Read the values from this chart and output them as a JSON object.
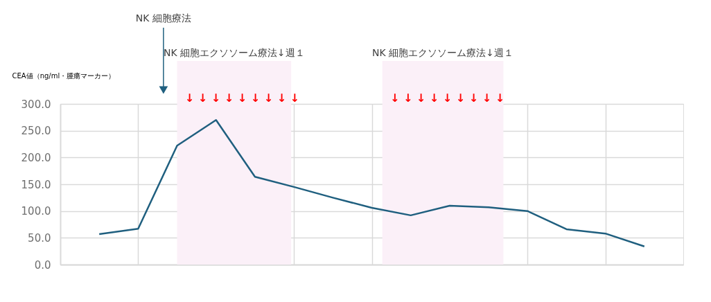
{
  "chart_data": {
    "type": "line",
    "ylabel": "CEA値（ng/ml・腫瘍マーカー）",
    "categories": [
      null,
      null,
      null,
      null,
      null,
      null,
      null,
      null,
      null,
      null,
      null,
      null,
      null,
      null,
      null
    ],
    "series": [
      {
        "color": "#1f5f7f",
        "values": [
          57,
          67,
          222,
          270,
          164,
          145,
          125,
          106,
          92,
          110,
          107,
          100,
          66,
          58,
          34
        ]
      }
    ],
    "ylim": [
      0,
      300
    ],
    "yticks": [
      {
        "value": 0,
        "label": "0.0"
      },
      {
        "value": 50,
        "label": "50.0"
      },
      {
        "value": 100,
        "label": "100.0"
      },
      {
        "value": 150,
        "label": "150.0"
      },
      {
        "value": 200,
        "label": "200.0"
      },
      {
        "value": 250,
        "label": "250.0"
      },
      {
        "value": 300,
        "label": "300.0"
      }
    ],
    "tick_labels": "y",
    "grid": true,
    "line_style": "solid",
    "annotations": [
      "NK 細胞療法",
      "NK 細胞エクソソーム療法↓週１",
      "↓ ↓ ↓ ↓ ↓ ↓ ↓ ↓ ↓",
      "NK 細胞エクソソーム療法↓週１",
      "↓ ↓ ↓ ↓ ↓ ↓ ↓ ↓ ↓"
    ]
  }
}
